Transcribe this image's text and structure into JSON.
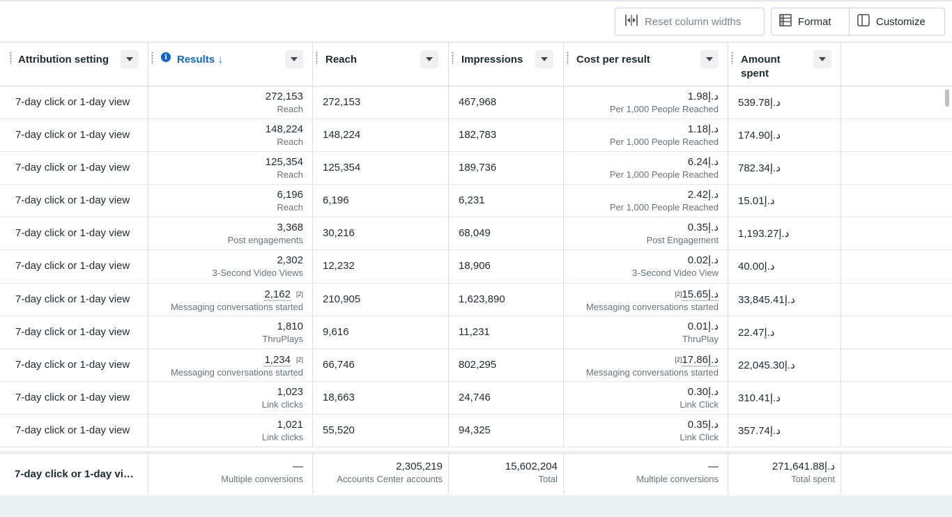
{
  "toolbar": {
    "reset_label": "Reset column widths",
    "format_label": "Format",
    "customize_label": "Customize"
  },
  "columns": {
    "attribution": "Attribution setting",
    "results": "Results ↓",
    "reach": "Reach",
    "impressions": "Impressions",
    "cost_per_result": "Cost per result",
    "amount_spent": "Amount spent"
  },
  "rows": [
    {
      "attr": "7-day click or 1-day view",
      "results": "272,153",
      "results_sub": "Reach",
      "reach": "272,153",
      "impressions": "467,968",
      "cpr": "د.إ1.98",
      "cpr_sub": "Per 1,000 People Reached",
      "spent": "د.إ539.78"
    },
    {
      "attr": "7-day click or 1-day view",
      "results": "148,224",
      "results_sub": "Reach",
      "reach": "148,224",
      "impressions": "182,783",
      "cpr": "د.إ1.18",
      "cpr_sub": "Per 1,000 People Reached",
      "spent": "د.إ174.90"
    },
    {
      "attr": "7-day click or 1-day view",
      "results": "125,354",
      "results_sub": "Reach",
      "reach": "125,354",
      "impressions": "189,736",
      "cpr": "د.إ6.24",
      "cpr_sub": "Per 1,000 People Reached",
      "spent": "د.إ782.34"
    },
    {
      "attr": "7-day click or 1-day view",
      "results": "6,196",
      "results_sub": "Reach",
      "reach": "6,196",
      "impressions": "6,231",
      "cpr": "د.إ2.42",
      "cpr_sub": "Per 1,000 People Reached",
      "spent": "د.إ15.01"
    },
    {
      "attr": "7-day click or 1-day view",
      "results": "3,368",
      "results_sub": "Post engagements",
      "reach": "30,216",
      "impressions": "68,049",
      "cpr": "د.إ0.35",
      "cpr_sub": "Post Engagement",
      "spent": "د.إ1,193.27"
    },
    {
      "attr": "7-day click or 1-day view",
      "results": "2,302",
      "results_sub": "3-Second Video Views",
      "reach": "12,232",
      "impressions": "18,906",
      "cpr": "د.إ0.02",
      "cpr_sub": "3-Second Video View",
      "spent": "د.إ40.00"
    },
    {
      "attr": "7-day click or 1-day view",
      "results": "2,162",
      "results_note": "[2]",
      "results_sub": "Messaging conversations started",
      "reach": "210,905",
      "impressions": "1,623,890",
      "cpr": "د.إ15.65",
      "cpr_note": "[2]",
      "cpr_sub": "Messaging conversations started",
      "spent": "د.إ33,845.41"
    },
    {
      "attr": "7-day click or 1-day view",
      "results": "1,810",
      "results_sub": "ThruPlays",
      "reach": "9,616",
      "impressions": "11,231",
      "cpr": "د.إ0.01",
      "cpr_sub": "ThruPlay",
      "spent": "د.إ22.47"
    },
    {
      "attr": "7-day click or 1-day view",
      "results": "1,234",
      "results_note": "[2]",
      "results_sub": "Messaging conversations started",
      "reach": "66,746",
      "impressions": "802,295",
      "cpr": "د.إ17.86",
      "cpr_note": "[2]",
      "cpr_sub": "Messaging conversations started",
      "spent": "د.إ22,045.30"
    },
    {
      "attr": "7-day click or 1-day view",
      "results": "1,023",
      "results_sub": "Link clicks",
      "reach": "18,663",
      "impressions": "24,746",
      "cpr": "د.إ0.30",
      "cpr_sub": "Link Click",
      "spent": "د.إ310.41"
    },
    {
      "attr": "7-day click or 1-day view",
      "results": "1,021",
      "results_sub": "Link clicks",
      "reach": "55,520",
      "impressions": "94,325",
      "cpr": "د.إ0.35",
      "cpr_sub": "Link Click",
      "spent": "د.إ357.74"
    }
  ],
  "totals": {
    "attr": "7-day click or 1-day vi…",
    "results": "—",
    "results_sub": "Multiple conversions",
    "reach": "2,305,219",
    "reach_sub": "Accounts Center accounts",
    "impressions": "15,602,204",
    "impressions_sub": "Total",
    "cpr": "—",
    "cpr_sub": "Multiple conversions",
    "spent": "د.إ271,641.88",
    "spent_sub": "Total spent"
  },
  "colors": {
    "accent_blue": "#0a66d8",
    "text": "#1c2b33",
    "subtext": "#65737e",
    "border": "#dadde1"
  }
}
